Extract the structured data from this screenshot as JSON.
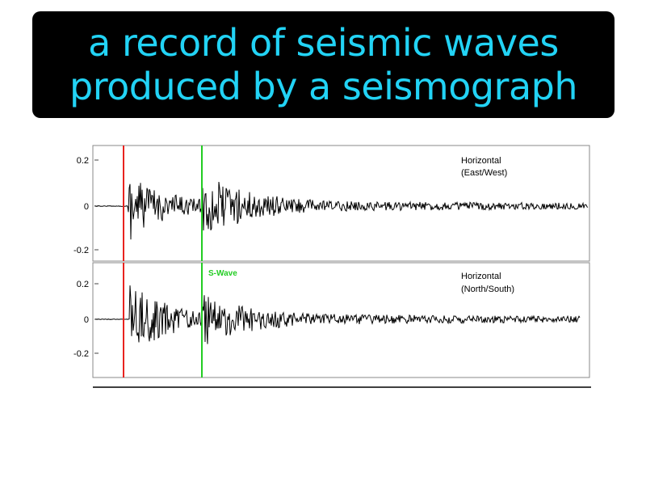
{
  "definition": {
    "line1": "a record of seismic waves",
    "line2": "produced by a seismograph",
    "text_color": "#22d3f5",
    "background_color": "#000000"
  },
  "chart_data": [
    {
      "type": "line",
      "title": "",
      "xlabel": "",
      "ylabel": "",
      "panel_label": [
        "Horizontal",
        "(East/West)"
      ],
      "yticks": [
        "0.2",
        "0",
        "-0.2"
      ],
      "ylim": [
        -0.25,
        0.25
      ],
      "marker_label": "",
      "marker_colors": {
        "p_wave": "#e8231f",
        "s_wave": "#22cc22"
      },
      "series_color": "#000000"
    },
    {
      "type": "line",
      "title": "",
      "xlabel": "",
      "ylabel": "",
      "panel_label": [
        "Horizontal",
        "(North/South)"
      ],
      "yticks": [
        "0.2",
        "0",
        "-0.2"
      ],
      "ylim": [
        -0.33,
        0.33
      ],
      "marker_label": "S-Wave",
      "marker_colors": {
        "p_wave": "#e8231f",
        "s_wave": "#22cc22"
      },
      "series_color": "#000000"
    }
  ]
}
